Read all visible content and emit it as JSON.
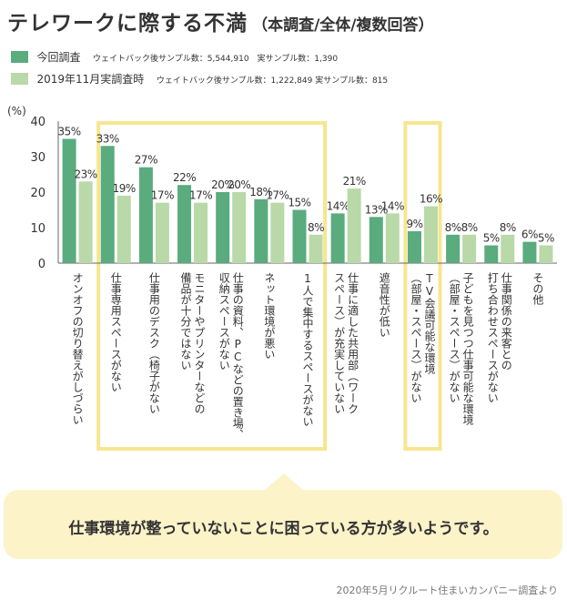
{
  "title": {
    "main": "テレワークに際する不満",
    "sub": "（本調査/全体/複数回答）"
  },
  "legend": [
    {
      "label": "今回調査",
      "note": "ウェイトバック後サンプル数：5,544,910　実サンプル数：1,390",
      "color": "#5aab7e"
    },
    {
      "label": "2019年11月実調査時",
      "note": "ウェイトバック後サンプル数：1,222,849 実サンプル数：815",
      "color": "#b9d9a8"
    }
  ],
  "callout": "仕事環境が整っていないことに困っている方が多いようです。",
  "source": "2020年5月リクルート住まいカンパニー調査より",
  "chart_data": {
    "type": "bar",
    "ylabel": "(%)",
    "ylim": [
      0,
      40
    ],
    "yticks": [
      0,
      10,
      20,
      30,
      40
    ],
    "grid": false,
    "categories": [
      [
        "オンオフの切り替えがしづらい"
      ],
      [
        "仕事専用スペースがない"
      ],
      [
        "仕事用のデスク（椅子がない"
      ],
      [
        "モニターやプリンターなどの",
        "備品が十分ではない"
      ],
      [
        "仕事の資料、PCなどの置き場、",
        "収納スペースがない"
      ],
      [
        "ネット環境が悪い"
      ],
      [
        "1人で集中するスペースがない"
      ],
      [
        "仕事に適した共用部（ワーク",
        "スペース）が充実していない"
      ],
      [
        "遮音性が低い"
      ],
      [
        "TV会議可能な環境",
        "（部屋・スペース）がない"
      ],
      [
        "子どもを見つつ仕事可能な環境",
        "（部屋・スペース）がない"
      ],
      [
        "仕事関係の来客との",
        "打ち合わせスペースがない"
      ],
      [
        "その他"
      ]
    ],
    "series": [
      {
        "name": "今回調査",
        "color": "#5aab7e",
        "values": [
          35,
          33,
          27,
          22,
          20,
          18,
          15,
          14,
          13,
          9,
          8,
          5,
          6
        ]
      },
      {
        "name": "2019年11月実調査時",
        "color": "#b9d9a8",
        "values": [
          23,
          19,
          17,
          17,
          20,
          17,
          8,
          21,
          14,
          16,
          8,
          8,
          5
        ]
      }
    ],
    "value_labels": [
      [
        "35%",
        "33%",
        "27%",
        "22%",
        "20%",
        "18%",
        "15%",
        "14%",
        "13%",
        "9%",
        "8%",
        "5%",
        "6%"
      ],
      [
        "23%",
        "19%",
        "17%",
        "17%",
        "20%",
        "17%",
        "8%",
        "21%",
        "14%",
        "16%",
        "8%",
        "8%",
        "5%"
      ]
    ]
  }
}
